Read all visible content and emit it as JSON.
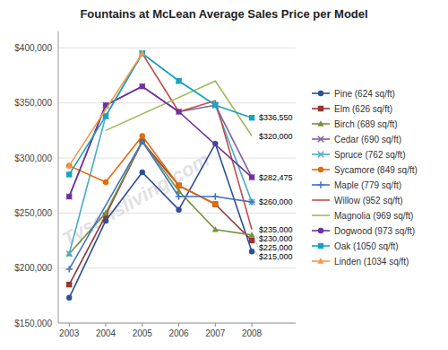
{
  "chart_data": {
    "type": "line",
    "title": "Fountains at McLean Average Sales Price per Model",
    "x": [
      2003,
      2004,
      2005,
      2006,
      2007,
      2008
    ],
    "xlim": [
      2002.7,
      2009.2
    ],
    "xticks": [
      2003,
      2004,
      2005,
      2006,
      2007,
      2008
    ],
    "ylim": [
      150000,
      415000
    ],
    "yticks": [
      {
        "value": 150000,
        "label": "$150,000"
      },
      {
        "value": 200000,
        "label": "$200,000"
      },
      {
        "value": 250000,
        "label": "$250,000"
      },
      {
        "value": 300000,
        "label": "$300,000"
      },
      {
        "value": 350000,
        "label": "$350,000"
      },
      {
        "value": 400000,
        "label": "$400,000"
      }
    ],
    "grid": true,
    "legend": "right",
    "series": [
      {
        "name": "Pine (624 sq/ft)",
        "color": "#2e4e96",
        "marker": "circle",
        "values": [
          173000,
          243000,
          287000,
          253000,
          313000,
          215000
        ]
      },
      {
        "name": "Elm (626 sq/ft)",
        "color": "#943634",
        "marker": "square",
        "values": [
          185000,
          248000,
          315000,
          275000,
          258000,
          225000
        ]
      },
      {
        "name": "Birch (689 sq/ft)",
        "color": "#76923c",
        "marker": "triangle",
        "values": [
          213000,
          250000,
          315000,
          270000,
          235000,
          230000
        ]
      },
      {
        "name": "Cedar (690 sq/ft)",
        "color": "#7f5f9e",
        "marker": "x",
        "values": [
          265000,
          348000,
          365000,
          342000,
          348000,
          282475
        ]
      },
      {
        "name": "Spruce (762 sq/ft)",
        "color": "#4bacc6",
        "marker": "x",
        "values": [
          213000,
          338000,
          395000,
          370000,
          348000,
          260000
        ]
      },
      {
        "name": "Sycamore (849 sq/ft)",
        "color": "#e36c09",
        "marker": "circle",
        "values": [
          293000,
          278000,
          320000,
          275000,
          258000,
          null
        ]
      },
      {
        "name": "Maple (779 sq/ft)",
        "color": "#4472c4",
        "marker": "plus",
        "values": [
          199000,
          null,
          315000,
          265000,
          265000,
          260000
        ]
      },
      {
        "name": "Willow (952 sq/ft)",
        "color": "#c0504d",
        "marker": "none",
        "values": [
          null,
          null,
          395000,
          342000,
          352000,
          235000
        ]
      },
      {
        "name": "Magnolia (969 sq/ft)",
        "color": "#9bbb59",
        "marker": "none",
        "values": [
          null,
          325000,
          null,
          null,
          370000,
          320000
        ]
      },
      {
        "name": "Dogwood (973 sq/ft)",
        "color": "#7030a0",
        "marker": "circle",
        "values": [
          265000,
          348000,
          365000,
          342000,
          null,
          282475
        ]
      },
      {
        "name": "Oak (1050 sq/ft)",
        "color": "#17a3c4",
        "marker": "square",
        "values": [
          285000,
          338000,
          395000,
          370000,
          348000,
          336550
        ]
      },
      {
        "name": "Linden (1034 sq/ft)",
        "color": "#f79646",
        "marker": "triangle",
        "values": [
          293000,
          null,
          395000,
          null,
          null,
          null
        ]
      }
    ],
    "annotations": [
      {
        "x": 2008,
        "y": 336550,
        "text": "$336,550"
      },
      {
        "x": 2008,
        "y": 320000,
        "text": "$320,000"
      },
      {
        "x": 2008,
        "y": 282475,
        "text": "$282,475"
      },
      {
        "x": 2008,
        "y": 260000,
        "text": "$260,000"
      },
      {
        "x": 2008,
        "y": 235000,
        "text": "$235,000"
      },
      {
        "x": 2008,
        "y": 230000,
        "text": "$230,000"
      },
      {
        "x": 2008,
        "y": 225000,
        "text": "$225,000"
      },
      {
        "x": 2008,
        "y": 215000,
        "text": "$215,000"
      },
      {
        "text": "Tysonsliving.com"
      }
    ]
  }
}
